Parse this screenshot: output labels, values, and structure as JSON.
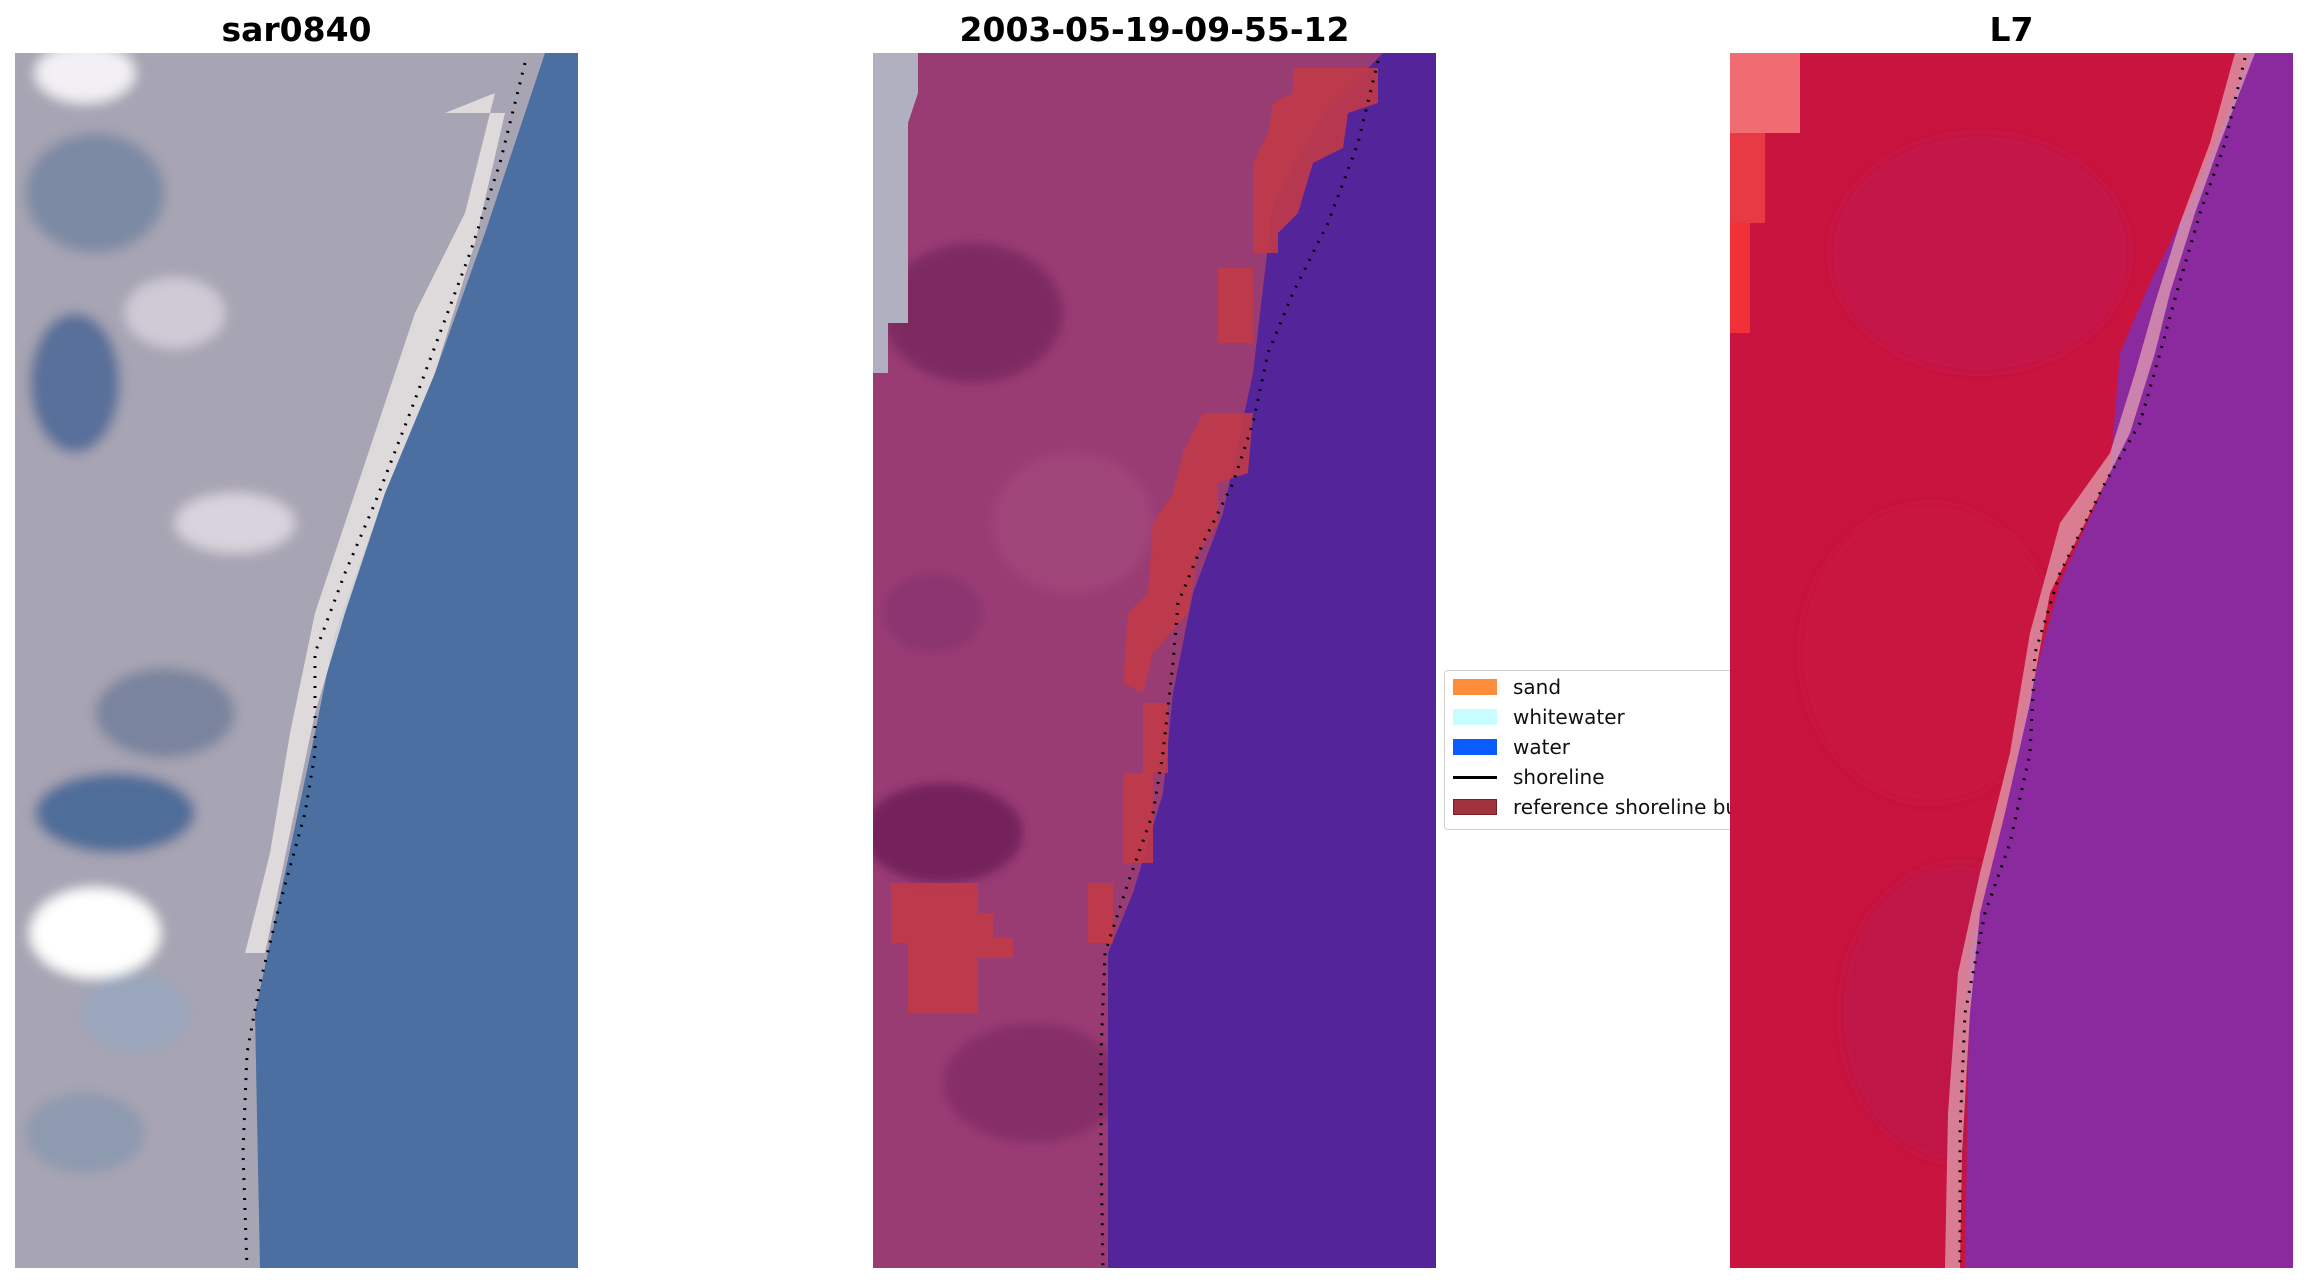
{
  "panels": [
    {
      "title": "sar0840",
      "scene": "rgb"
    },
    {
      "title": "2003-05-19-09-55-12",
      "scene": "classified"
    },
    {
      "title": "L7",
      "scene": "false-color"
    }
  ],
  "legend": {
    "items": [
      {
        "label": "sand",
        "color": "#ff8c3a",
        "kind": "patch"
      },
      {
        "label": "whitewater",
        "color": "#c8fcff",
        "kind": "patch"
      },
      {
        "label": "water",
        "color": "#0a5cff",
        "kind": "patch"
      },
      {
        "label": "shoreline",
        "color": "#000000",
        "kind": "line"
      },
      {
        "label": "reference shoreline buffer",
        "color": "#a0343c",
        "kind": "patch"
      }
    ]
  },
  "colors": {
    "rgb_land": "#a9a6b4",
    "rgb_water": "#4a6fa0",
    "rgb_sand": "#f0ede8",
    "class_land": "#9a3c74",
    "class_water": "#54259a",
    "class_buffer": "#c03a48",
    "fc_land": "#c8143e",
    "fc_water": "#8a2a9e",
    "fc_beach": "#e0a0b0"
  }
}
